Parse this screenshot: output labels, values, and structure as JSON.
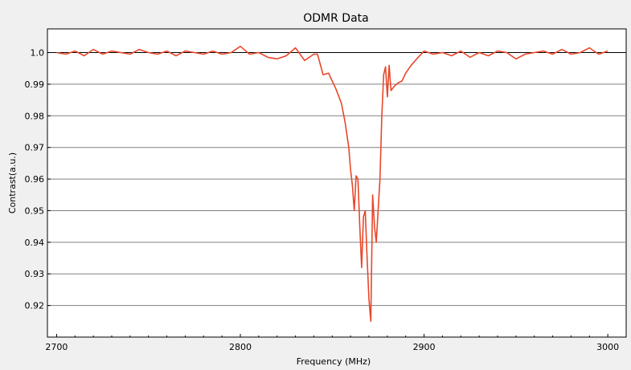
{
  "chart_data": {
    "type": "line",
    "title": "ODMR Data",
    "xlabel": "Frequency (MHz)",
    "ylabel": "Contrast(a.u.)",
    "xlim": [
      2695,
      3010
    ],
    "ylim": [
      0.91,
      1.0075
    ],
    "x_ticks": [
      2700,
      2800,
      2900,
      3000
    ],
    "x_tick_labels": [
      "2700",
      "2800",
      "2900",
      "3000"
    ],
    "y_ticks": [
      0.92,
      0.93,
      0.94,
      0.95,
      0.96,
      0.97,
      0.98,
      0.99,
      1.0
    ],
    "y_tick_labels": [
      "0.92",
      "0.93",
      "0.94",
      "0.95",
      "0.96",
      "0.97",
      "0.98",
      "0.99",
      "1.0"
    ],
    "grid": "horizontal",
    "reference_line": 1.0,
    "colors": {
      "series": "#e8472a",
      "background": "#ffffff",
      "grid": "#808080",
      "reference": "#000000"
    },
    "series": [
      {
        "x": [
          2700,
          2705,
          2710,
          2715,
          2720,
          2725,
          2730,
          2735,
          2740,
          2745,
          2750,
          2755,
          2760,
          2765,
          2770,
          2775,
          2780,
          2785,
          2790,
          2795,
          2800,
          2805,
          2810,
          2815,
          2820,
          2825,
          2830,
          2835,
          2840,
          2842,
          2845,
          2848,
          2850,
          2852,
          2855,
          2857,
          2859,
          2860,
          2861,
          2862,
          2863,
          2864,
          2865,
          2866,
          2867,
          2868,
          2869,
          2870,
          2871,
          2872,
          2873,
          2874,
          2875,
          2876,
          2877,
          2878,
          2879,
          2880,
          2881,
          2882,
          2884,
          2886,
          2888,
          2890,
          2893,
          2896,
          2900,
          2905,
          2910,
          2915,
          2920,
          2925,
          2930,
          2935,
          2940,
          2945,
          2950,
          2955,
          2960,
          2965,
          2970,
          2975,
          2980,
          2985,
          2990,
          2995,
          3000
        ],
        "y": [
          1.0,
          0.9995,
          1.0005,
          0.999,
          1.001,
          0.9995,
          1.0005,
          1.0,
          0.9995,
          1.001,
          1.0,
          0.9995,
          1.0005,
          0.999,
          1.0005,
          1.0,
          0.9995,
          1.0005,
          0.9995,
          1.0,
          1.002,
          0.9995,
          1.0,
          0.9985,
          0.998,
          0.999,
          1.0015,
          0.9975,
          0.9995,
          0.9995,
          0.993,
          0.9935,
          0.991,
          0.9885,
          0.984,
          0.978,
          0.97,
          0.963,
          0.958,
          0.95,
          0.961,
          0.96,
          0.945,
          0.932,
          0.948,
          0.95,
          0.935,
          0.922,
          0.915,
          0.955,
          0.945,
          0.94,
          0.95,
          0.96,
          0.98,
          0.993,
          0.9955,
          0.986,
          0.996,
          0.988,
          0.9895,
          0.9905,
          0.991,
          0.9935,
          0.996,
          0.998,
          1.0005,
          0.9995,
          1.0,
          0.999,
          1.0005,
          0.9985,
          1.0,
          0.999,
          1.0005,
          1.0,
          0.998,
          0.9995,
          1.0,
          1.0005,
          0.9995,
          1.001,
          0.9995,
          1.0,
          1.0015,
          0.9995,
          1.0005
        ]
      }
    ]
  }
}
